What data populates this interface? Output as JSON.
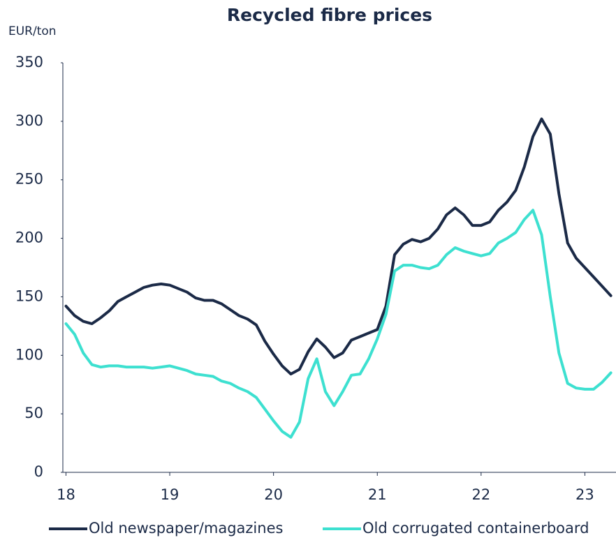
{
  "chart_data": {
    "type": "line",
    "title": "Recycled fibre prices",
    "y_label": "EUR/ton",
    "x": [
      18,
      18.0833,
      18.1667,
      18.25,
      18.3333,
      18.4167,
      18.5,
      18.5833,
      18.6667,
      18.75,
      18.8333,
      18.9167,
      19,
      19.0833,
      19.1667,
      19.25,
      19.3333,
      19.4167,
      19.5,
      19.5833,
      19.6667,
      19.75,
      19.8333,
      19.9167,
      20,
      20.0833,
      20.1667,
      20.25,
      20.3333,
      20.4167,
      20.5,
      20.5833,
      20.6667,
      20.75,
      20.8333,
      20.9167,
      21,
      21.0833,
      21.1667,
      21.25,
      21.3333,
      21.4167,
      21.5,
      21.5833,
      21.6667,
      21.75,
      21.8333,
      21.9167,
      22,
      22.0833,
      22.1667,
      22.25,
      22.3333,
      22.4167,
      22.5,
      22.5833,
      22.6667,
      22.75,
      22.8333,
      22.9167,
      23,
      23.0833,
      23.1667,
      23.25
    ],
    "series": [
      {
        "name": "Old newspaper/magazines",
        "color": "#1b2a47",
        "values": [
          142,
          134,
          129,
          127,
          132,
          138,
          146,
          150,
          154,
          158,
          160,
          161,
          160,
          157,
          154,
          149,
          147,
          147,
          144,
          139,
          134,
          131,
          126,
          112,
          101,
          91,
          84,
          88,
          103,
          114,
          107,
          98,
          102,
          113,
          116,
          119,
          122,
          142,
          186,
          195,
          199,
          197,
          200,
          208,
          220,
          226,
          220,
          211,
          211,
          214,
          224,
          231,
          241,
          261,
          287,
          302,
          289,
          238,
          196,
          183,
          175,
          167,
          159,
          151
        ]
      },
      {
        "name": "Old corrugated containerboard",
        "color": "#3de0d0",
        "values": [
          127,
          118,
          102,
          92,
          90,
          91,
          91,
          90,
          90,
          90,
          89,
          90,
          91,
          89,
          87,
          84,
          83,
          82,
          78,
          76,
          72,
          69,
          64,
          54,
          44,
          35,
          30,
          43,
          80,
          97,
          69,
          57,
          69,
          83,
          84,
          97,
          114,
          135,
          172,
          177,
          177,
          175,
          174,
          177,
          186,
          192,
          189,
          187,
          185,
          187,
          196,
          200,
          205,
          216,
          224,
          203,
          150,
          102,
          76,
          72,
          71,
          71,
          77,
          85
        ]
      }
    ],
    "xlim": [
      17.97,
      23.3
    ],
    "xticks": [
      18,
      19,
      20,
      21,
      22,
      23
    ],
    "ylim": [
      0,
      350
    ],
    "yticks": [
      0,
      50,
      100,
      150,
      200,
      250,
      300,
      350
    ],
    "grid": false,
    "legend": "bottom"
  }
}
